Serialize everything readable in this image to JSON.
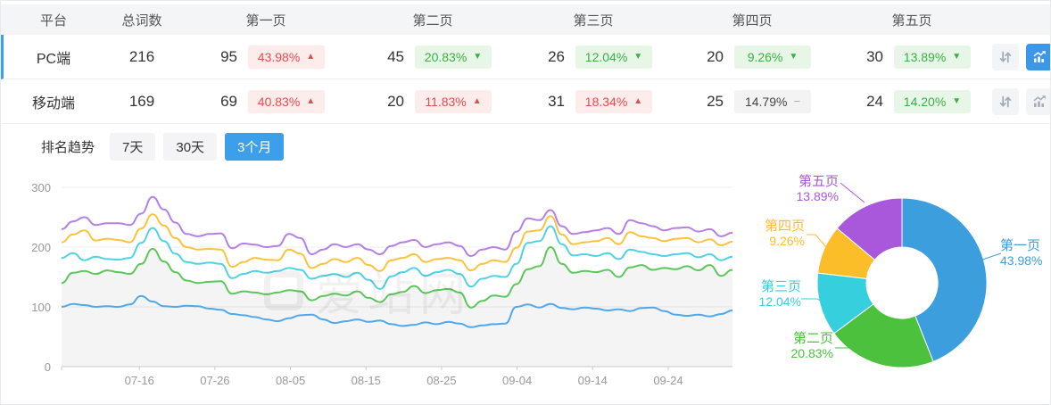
{
  "app": {
    "watermark": "爱站网"
  },
  "colors": {
    "accent": "#3d9ee9",
    "up_red": "#e64c4c",
    "up_red_bg": "#fcecec",
    "down_green": "#3cae46",
    "down_green_bg": "#e7f6e7",
    "flat_gray_bg": "#f3f3f3",
    "axis_label": "#999999",
    "grid_line": "#eeeeee",
    "axis_line": "#cccccc"
  },
  "table": {
    "headers": [
      "平台",
      "总词数",
      "第一页",
      "第二页",
      "第三页",
      "第四页",
      "第五页"
    ],
    "rows": [
      {
        "platform": "PC端",
        "total": "216",
        "selected": true,
        "trend_active": true,
        "pages": [
          {
            "count": "95",
            "pct": "43.98%",
            "dir": "up"
          },
          {
            "count": "45",
            "pct": "20.83%",
            "dir": "down"
          },
          {
            "count": "26",
            "pct": "12.04%",
            "dir": "down"
          },
          {
            "count": "20",
            "pct": "9.26%",
            "dir": "down"
          },
          {
            "count": "30",
            "pct": "13.89%",
            "dir": "down"
          }
        ]
      },
      {
        "platform": "移动端",
        "total": "169",
        "selected": false,
        "trend_active": false,
        "pages": [
          {
            "count": "69",
            "pct": "40.83%",
            "dir": "up"
          },
          {
            "count": "20",
            "pct": "11.83%",
            "dir": "up"
          },
          {
            "count": "31",
            "pct": "18.34%",
            "dir": "up"
          },
          {
            "count": "25",
            "pct": "14.79%",
            "dir": "flat"
          },
          {
            "count": "24",
            "pct": "14.20%",
            "dir": "down"
          }
        ]
      }
    ]
  },
  "trend": {
    "title": "排名趋势",
    "filters": [
      {
        "label": "7天",
        "active": false
      },
      {
        "label": "30天",
        "active": false
      },
      {
        "label": "3个月",
        "active": true
      }
    ]
  },
  "chart_data": [
    {
      "type": "line",
      "title": "排名趋势",
      "x_labels": [
        "07-16",
        "07-26",
        "08-05",
        "08-15",
        "08-25",
        "09-04",
        "09-14",
        "09-24"
      ],
      "y_ticks": [
        0,
        100,
        200,
        300
      ],
      "ylim": [
        0,
        300
      ],
      "grid": true,
      "legend": "none",
      "series": [
        {
          "name": "第一页",
          "color": "#4fa8e9",
          "area": false,
          "values": [
            100,
            105,
            103,
            100,
            101,
            100,
            104,
            118,
            109,
            101,
            100,
            102,
            101,
            97,
            95,
            88,
            86,
            83,
            79,
            76,
            81,
            86,
            87,
            79,
            73,
            76,
            79,
            75,
            77,
            71,
            68,
            70,
            74,
            71,
            75,
            72,
            66,
            69,
            71,
            72,
            100,
            104,
            99,
            105,
            98,
            96,
            99,
            97,
            94,
            96,
            93,
            98,
            99,
            93,
            87,
            85,
            87,
            84,
            88,
            94
          ]
        },
        {
          "name": "第二页",
          "color": "#5cc75c",
          "area": true,
          "area_color": "rgba(150,150,150,0.10)",
          "values": [
            140,
            157,
            160,
            155,
            161,
            158,
            155,
            172,
            197,
            176,
            158,
            144,
            140,
            142,
            143,
            122,
            126,
            124,
            121,
            124,
            128,
            126,
            111,
            118,
            122,
            119,
            126,
            115,
            108,
            121,
            125,
            135,
            123,
            128,
            130,
            124,
            99,
            110,
            119,
            117,
            138,
            163,
            168,
            200,
            172,
            157,
            160,
            158,
            162,
            150,
            166,
            170,
            162,
            165,
            163,
            168,
            161,
            170,
            152,
            162
          ]
        },
        {
          "name": "第三页",
          "color": "#4fd2e4",
          "area": false,
          "values": [
            182,
            190,
            178,
            184,
            180,
            179,
            182,
            207,
            232,
            210,
            189,
            175,
            172,
            174,
            172,
            148,
            155,
            160,
            157,
            160,
            165,
            162,
            147,
            152,
            155,
            150,
            157,
            145,
            130,
            151,
            158,
            165,
            152,
            158,
            162,
            155,
            134,
            147,
            152,
            150,
            172,
            207,
            210,
            235,
            205,
            186,
            188,
            185,
            190,
            180,
            196,
            192,
            188,
            185,
            188,
            190,
            183,
            188,
            178,
            184
          ]
        },
        {
          "name": "第四页",
          "color": "#fbc33c",
          "area": false,
          "values": [
            208,
            221,
            228,
            211,
            214,
            212,
            208,
            231,
            255,
            236,
            215,
            200,
            196,
            197,
            196,
            167,
            175,
            182,
            179,
            178,
            196,
            189,
            165,
            172,
            180,
            175,
            182,
            170,
            160,
            178,
            182,
            188,
            175,
            180,
            182,
            178,
            161,
            172,
            178,
            175,
            199,
            226,
            228,
            252,
            221,
            205,
            208,
            210,
            215,
            205,
            225,
            218,
            215,
            210,
            214,
            215,
            208,
            213,
            203,
            209
          ]
        },
        {
          "name": "第五页",
          "color": "#b57fe4",
          "area": false,
          "values": [
            230,
            243,
            250,
            237,
            240,
            240,
            237,
            256,
            284,
            263,
            241,
            222,
            218,
            222,
            223,
            198,
            206,
            204,
            200,
            202,
            222,
            215,
            188,
            196,
            205,
            200,
            205,
            196,
            188,
            202,
            208,
            212,
            200,
            205,
            208,
            202,
            185,
            196,
            200,
            196,
            226,
            248,
            245,
            262,
            235,
            222,
            225,
            228,
            232,
            222,
            245,
            240,
            235,
            228,
            232,
            233,
            226,
            230,
            218,
            224
          ]
        }
      ]
    },
    {
      "type": "donut",
      "labels": [
        "第一页",
        "第二页",
        "第三页",
        "第四页",
        "第五页"
      ],
      "values": [
        43.98,
        20.83,
        12.04,
        9.26,
        13.89
      ],
      "display": [
        "43.98%",
        "20.83%",
        "12.04%",
        "9.26%",
        "13.89%"
      ],
      "colors": [
        "#3d9edd",
        "#4cc13e",
        "#35cfde",
        "#fbbe29",
        "#a958dc"
      ],
      "start_angle_deg": 0,
      "direction": "clockwise"
    }
  ]
}
